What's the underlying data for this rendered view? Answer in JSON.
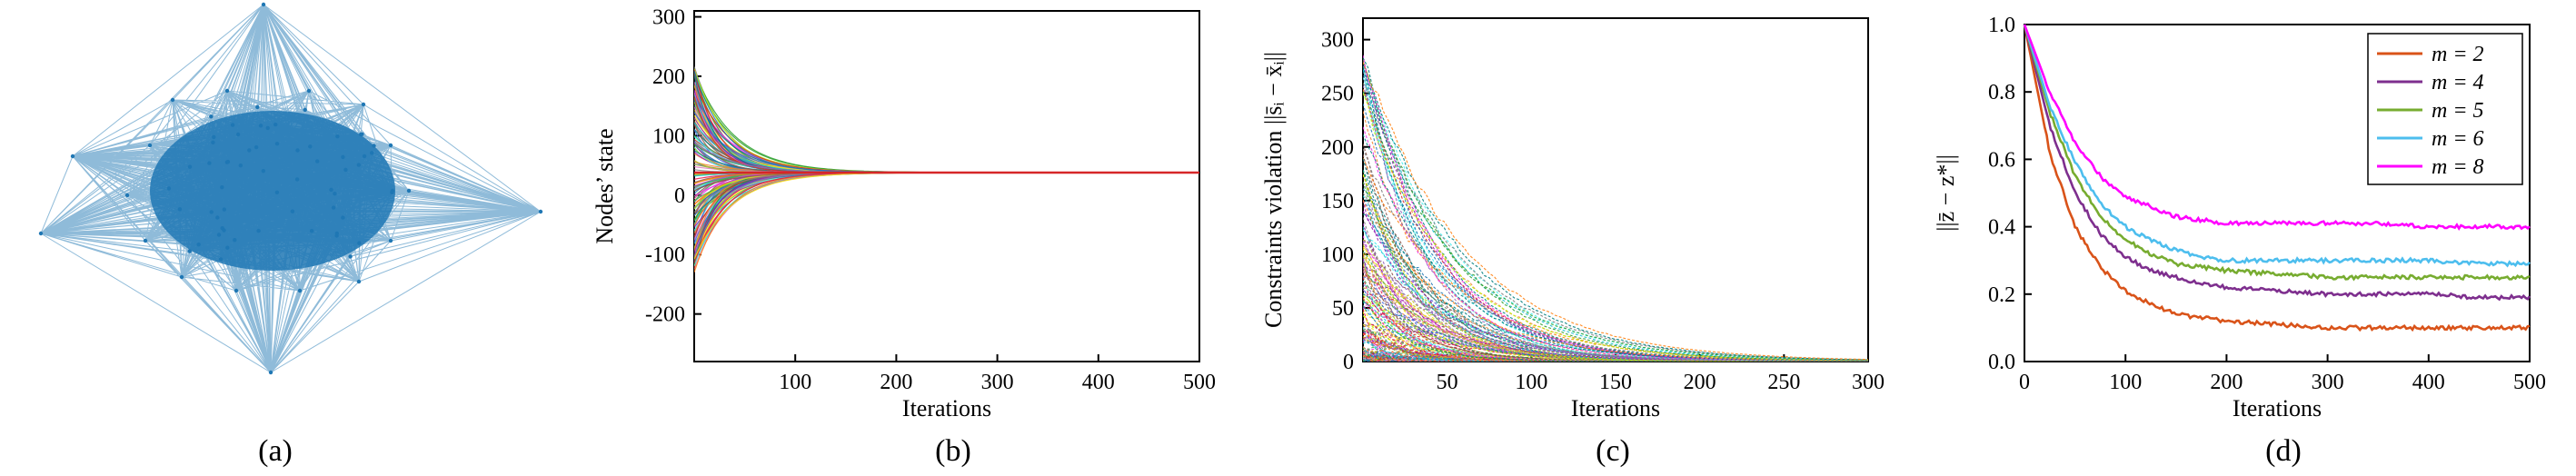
{
  "panels": {
    "a": {
      "caption": "(a)"
    },
    "b": {
      "caption": "(b)"
    },
    "c": {
      "caption": "(c)"
    },
    "d": {
      "caption": "(d)"
    }
  },
  "chart_data": [
    {
      "id": "a",
      "type": "network",
      "description_free": true,
      "edge_color": "#1f77b4"
    },
    {
      "id": "b",
      "type": "line",
      "xlabel": "Iterations",
      "ylabel": "Nodes’ state",
      "xlim": [
        0,
        500
      ],
      "ylim": [
        -280,
        310
      ],
      "xticks": [
        100,
        200,
        300,
        400,
        500
      ],
      "yticks": [
        -200,
        -100,
        0,
        100,
        200,
        300
      ],
      "consensus_value": 38,
      "initial_range": [
        -130,
        220
      ],
      "convergence_iteration": 140
    },
    {
      "id": "c",
      "type": "line",
      "xlabel": "Iterations",
      "ylabel": "Constraints violation ||s̄ᵢ − x̄ᵢ||",
      "xlim": [
        0,
        300
      ],
      "ylim": [
        0,
        320
      ],
      "xticks": [
        50,
        100,
        150,
        200,
        250,
        300
      ],
      "yticks": [
        0,
        50,
        100,
        150,
        200,
        250,
        300
      ],
      "max_initial": 300,
      "decay_to_zero_by": 200
    },
    {
      "id": "d",
      "type": "line",
      "xlabel": "Iterations",
      "ylabel": "||z̄ − z*||",
      "xlim": [
        0,
        500
      ],
      "ylim": [
        0,
        1.0
      ],
      "xticks": [
        0,
        100,
        200,
        300,
        400,
        500
      ],
      "yticks": [
        0,
        0.2,
        0.4,
        0.6,
        0.8,
        1.0
      ],
      "legend_placement": "top-right",
      "x": [
        0,
        25,
        50,
        75,
        100,
        125,
        150,
        175,
        200,
        250,
        300,
        350,
        400,
        450,
        500
      ],
      "series": [
        {
          "name": "m = 2",
          "color": "#d95319",
          "values": [
            1.0,
            0.62,
            0.4,
            0.28,
            0.21,
            0.17,
            0.14,
            0.13,
            0.12,
            0.11,
            0.1,
            0.1,
            0.1,
            0.1,
            0.1
          ]
        },
        {
          "name": "m = 4",
          "color": "#7e2f8e",
          "values": [
            1.0,
            0.7,
            0.5,
            0.38,
            0.31,
            0.27,
            0.25,
            0.23,
            0.22,
            0.21,
            0.2,
            0.2,
            0.2,
            0.19,
            0.19
          ]
        },
        {
          "name": "m = 5",
          "color": "#77ac30",
          "values": [
            1.0,
            0.74,
            0.55,
            0.43,
            0.36,
            0.32,
            0.29,
            0.28,
            0.27,
            0.26,
            0.25,
            0.25,
            0.25,
            0.25,
            0.25
          ]
        },
        {
          "name": "m = 6",
          "color": "#4dbeee",
          "values": [
            1.0,
            0.76,
            0.59,
            0.47,
            0.4,
            0.36,
            0.33,
            0.31,
            0.3,
            0.3,
            0.3,
            0.3,
            0.3,
            0.29,
            0.29
          ]
        },
        {
          "name": "m = 8",
          "color": "#ff00ff",
          "values": [
            1.0,
            0.8,
            0.65,
            0.55,
            0.49,
            0.46,
            0.43,
            0.42,
            0.41,
            0.41,
            0.41,
            0.41,
            0.4,
            0.4,
            0.4
          ]
        }
      ]
    }
  ]
}
